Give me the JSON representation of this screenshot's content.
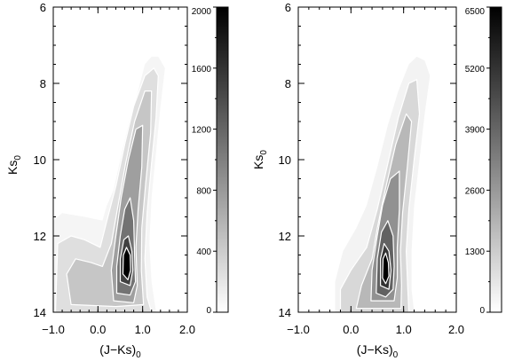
{
  "chart_data": [
    {
      "type": "heatmap",
      "panel": "left",
      "xlabel": "(J−Ks)",
      "xlabel_sub": "0",
      "ylabel": "Ks",
      "ylabel_sub": "0",
      "xlim": [
        -1.0,
        2.0
      ],
      "ylim": [
        14,
        6
      ],
      "x_ticks": [
        -1.0,
        0.0,
        1.0,
        2.0
      ],
      "x_tick_labels": [
        "−1.0",
        "0.0",
        "1.0",
        "2.0"
      ],
      "y_ticks": [
        6,
        8,
        10,
        12,
        14
      ],
      "y_tick_labels": [
        "6",
        "8",
        "10",
        "12",
        "14"
      ],
      "colorbar": {
        "min": 0,
        "max": 2000,
        "ticks": [
          0,
          400,
          800,
          1200,
          1600,
          2000
        ],
        "tick_labels": [
          "0",
          "400",
          "800",
          "1200",
          "1600",
          "2000"
        ]
      },
      "density_features": [
        {
          "feature": "red clump peak",
          "x": 0.65,
          "y": 12.7,
          "density": 2000
        },
        {
          "feature": "red giant branch tip",
          "x": 1.3,
          "y": 7.3,
          "density": 200
        },
        {
          "feature": "blue foreground plume",
          "x": -0.3,
          "y": 12.8,
          "density": 500
        }
      ],
      "grid": false,
      "contours": true
    },
    {
      "type": "heatmap",
      "panel": "right",
      "xlabel": "(J−Ks)",
      "xlabel_sub": "0",
      "ylabel": "Ks",
      "ylabel_sub": "0",
      "xlim": [
        -1.0,
        2.0
      ],
      "ylim": [
        14,
        6
      ],
      "x_ticks": [
        -1.0,
        0.0,
        1.0,
        2.0
      ],
      "x_tick_labels": [
        "−1.0",
        "0.0",
        "1.0",
        "2.0"
      ],
      "y_ticks": [
        6,
        8,
        10,
        12,
        14
      ],
      "y_tick_labels": [
        "6",
        "8",
        "10",
        "12",
        "14"
      ],
      "colorbar": {
        "min": 0,
        "max": 6500,
        "ticks": [
          0,
          1300,
          2600,
          3900,
          5200,
          6500
        ],
        "tick_labels": [
          "0",
          "1300",
          "2600",
          "3900",
          "5200",
          "6500"
        ]
      },
      "density_features": [
        {
          "feature": "red clump peak",
          "x": 0.65,
          "y": 12.8,
          "density": 6500
        },
        {
          "feature": "red giant branch tip",
          "x": 1.3,
          "y": 7.3,
          "density": 700
        },
        {
          "feature": "blue foreground plume",
          "x": 0.0,
          "y": 13.5,
          "density": 1000
        }
      ],
      "grid": false,
      "contours": true
    }
  ]
}
